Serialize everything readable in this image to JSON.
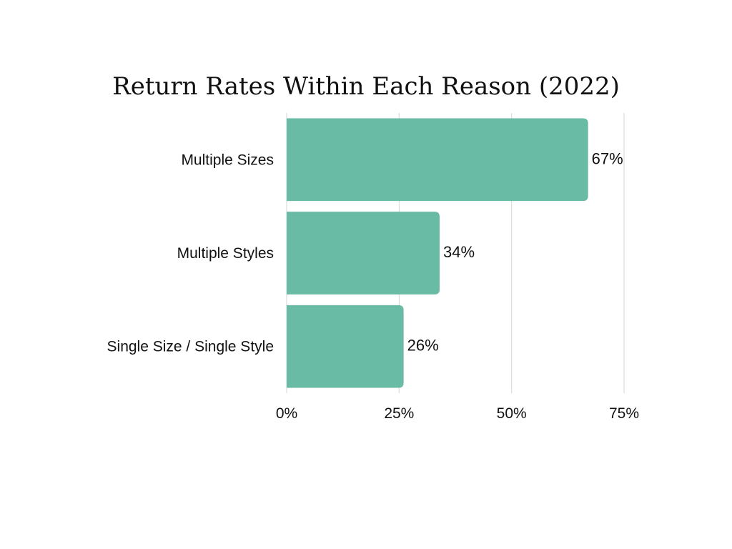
{
  "chart_data": {
    "type": "bar",
    "orientation": "horizontal",
    "title": "Return Rates Within Each Reason (2022)",
    "xlabel": "",
    "ylabel": "",
    "categories": [
      "Multiple Sizes",
      "Multiple Styles",
      "Single Size / Single Style"
    ],
    "values": [
      67,
      34,
      26
    ],
    "data_labels": [
      "67%",
      "34%",
      "26%"
    ],
    "xlim": [
      0,
      75
    ],
    "x_ticks": [
      0,
      25,
      50,
      75
    ],
    "x_tick_labels": [
      "0%",
      "25%",
      "50%",
      "75%"
    ],
    "grid": "vertical",
    "legend": "none",
    "bar_color": "#6abba5"
  }
}
